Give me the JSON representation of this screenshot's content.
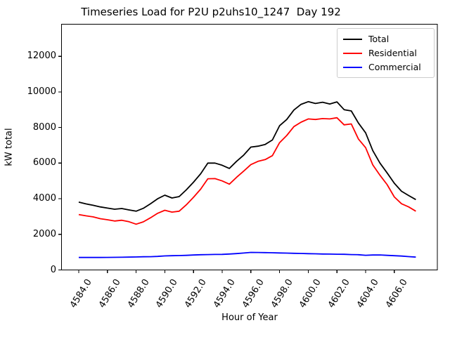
{
  "title": "Timeseries Load for P2U p2uhs10_1247  Day 192",
  "colors": {
    "background": "#ffffff",
    "axes": "#000000",
    "legend_border": "#cccccc",
    "total_line": "#000000",
    "residential_line": "#ff0000",
    "commercial_line": "#0000ff"
  },
  "chart_data": {
    "type": "line",
    "title": "Timeseries Load for P2U p2uhs10_1247  Day 192",
    "xlabel": "Hour of Year",
    "ylabel": "kW total",
    "xlim": [
      4582.8,
      4609.0
    ],
    "ylim": [
      0,
      13800
    ],
    "grid": false,
    "legend_position": "upper right",
    "x_tick_values": [
      4584,
      4586,
      4588,
      4590,
      4592,
      4594,
      4596,
      4598,
      4600,
      4602,
      4604,
      4606
    ],
    "x_tick_labels": [
      "4584.0",
      "4586.0",
      "4588.0",
      "4590.0",
      "4592.0",
      "4594.0",
      "4596.0",
      "4598.0",
      "4600.0",
      "4602.0",
      "4604.0",
      "4606.0"
    ],
    "y_tick_values": [
      0,
      2000,
      4000,
      6000,
      8000,
      10000,
      12000
    ],
    "y_tick_labels": [
      "0",
      "2000",
      "4000",
      "6000",
      "8000",
      "10000",
      "12000"
    ],
    "x": [
      4584.0,
      4584.5,
      4585.0,
      4585.5,
      4586.0,
      4586.5,
      4587.0,
      4587.5,
      4588.0,
      4588.5,
      4589.0,
      4589.5,
      4590.0,
      4590.5,
      4591.0,
      4591.5,
      4592.0,
      4592.5,
      4593.0,
      4593.5,
      4594.0,
      4594.5,
      4595.0,
      4595.5,
      4596.0,
      4596.5,
      4597.0,
      4597.5,
      4598.0,
      4598.5,
      4599.0,
      4599.5,
      4600.0,
      4600.5,
      4601.0,
      4601.5,
      4602.0,
      4602.5,
      4603.0,
      4603.5,
      4604.0,
      4604.5,
      4605.0,
      4605.5,
      4606.0,
      4606.5,
      4607.0,
      4607.5
    ],
    "series": [
      {
        "name": "Total",
        "color": "#000000",
        "values": [
          3810,
          3710,
          3630,
          3540,
          3475,
          3410,
          3450,
          3370,
          3300,
          3460,
          3720,
          4000,
          4200,
          4040,
          4120,
          4500,
          4930,
          5400,
          6000,
          6000,
          5880,
          5700,
          6100,
          6450,
          6900,
          6950,
          7050,
          7300,
          8100,
          8450,
          8980,
          9300,
          9450,
          9350,
          9420,
          9320,
          9440,
          9000,
          8930,
          8250,
          7700,
          6700,
          6000,
          5450,
          4870,
          4420,
          4180,
          3950
        ]
      },
      {
        "name": "Residential",
        "color": "#ff0000",
        "values": [
          3110,
          3040,
          2980,
          2880,
          2820,
          2750,
          2790,
          2710,
          2570,
          2700,
          2930,
          3180,
          3350,
          3250,
          3300,
          3660,
          4080,
          4540,
          5120,
          5130,
          5000,
          4820,
          5200,
          5550,
          5920,
          6100,
          6200,
          6420,
          7150,
          7550,
          8050,
          8300,
          8480,
          8450,
          8500,
          8480,
          8550,
          8150,
          8200,
          7350,
          6870,
          5900,
          5320,
          4790,
          4100,
          3720,
          3540,
          3300
        ]
      },
      {
        "name": "Commercial",
        "color": "#0000ff",
        "values": [
          700,
          700,
          700,
          700,
          705,
          710,
          715,
          720,
          730,
          740,
          745,
          760,
          790,
          800,
          810,
          820,
          840,
          855,
          865,
          870,
          875,
          895,
          920,
          950,
          985,
          980,
          975,
          965,
          955,
          945,
          935,
          925,
          915,
          905,
          895,
          890,
          885,
          880,
          865,
          855,
          825,
          840,
          845,
          820,
          800,
          780,
          750,
          720
        ]
      }
    ]
  }
}
